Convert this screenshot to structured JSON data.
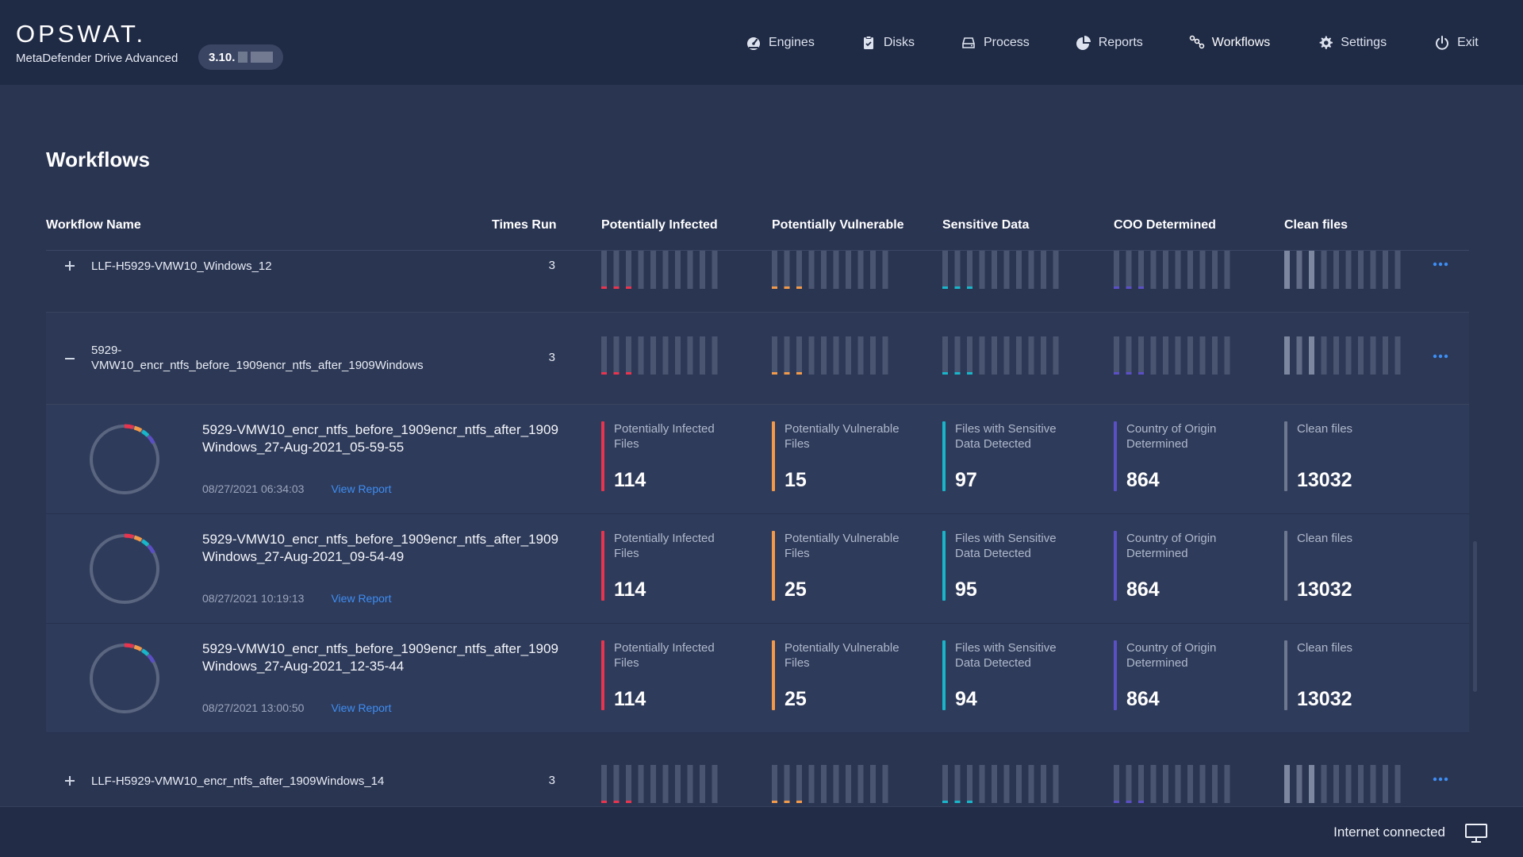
{
  "header": {
    "logo": "OPSWAT.",
    "product": "MetaDefender Drive Advanced",
    "version": "3.10.",
    "nav": [
      {
        "label": "Engines",
        "icon": "gauge-icon"
      },
      {
        "label": "Disks",
        "icon": "clipboard-check-icon"
      },
      {
        "label": "Process",
        "icon": "drive-icon"
      },
      {
        "label": "Reports",
        "icon": "pie-chart-icon"
      },
      {
        "label": "Workflows",
        "icon": "workflow-icon",
        "active": true
      },
      {
        "label": "Settings",
        "icon": "gear-icon"
      },
      {
        "label": "Exit",
        "icon": "power-icon"
      }
    ]
  },
  "page": {
    "title": "Workflows"
  },
  "table": {
    "columns": [
      "Workflow Name",
      "Times Run",
      "Potentially Infected",
      "Potentially Vulnerable",
      "Sensitive Data",
      "COO Determined",
      "Clean files"
    ],
    "rows": [
      {
        "name": "LLF-H5929-VMW10_Windows_12",
        "times": "3",
        "expanded": false
      },
      {
        "name": "5929-VMW10_encr_ntfs_before_1909encr_ntfs_after_1909Windows",
        "name_line1": "5929-",
        "name_line2": "VMW10_encr_ntfs_before_1909encr_ntfs_after_1909Windows",
        "times": "3",
        "expanded": true,
        "runs": [
          {
            "title": "5929-VMW10_encr_ntfs_before_1909encr_ntfs_after_1909Windows_27-Aug-2021_05-59-55",
            "date": "08/27/2021 06:34:03",
            "link": "View Report",
            "stats": {
              "infected": "114",
              "vulnerable": "15",
              "sensitive": "97",
              "coo": "864",
              "clean": "13032"
            }
          },
          {
            "title": "5929-VMW10_encr_ntfs_before_1909encr_ntfs_after_1909Windows_27-Aug-2021_09-54-49",
            "date": "08/27/2021 10:19:13",
            "link": "View Report",
            "stats": {
              "infected": "114",
              "vulnerable": "25",
              "sensitive": "95",
              "coo": "864",
              "clean": "13032"
            }
          },
          {
            "title": "5929-VMW10_encr_ntfs_before_1909encr_ntfs_after_1909Windows_27-Aug-2021_12-35-44",
            "date": "08/27/2021 13:00:50",
            "link": "View Report",
            "stats": {
              "infected": "114",
              "vulnerable": "25",
              "sensitive": "94",
              "coo": "864",
              "clean": "13032"
            }
          }
        ]
      },
      {
        "name": "LLF-H5929-VMW10_encr_ntfs_after_1909Windows_14",
        "times": "3",
        "expanded": false
      }
    ],
    "stat_labels": {
      "infected": "Potentially Infected Files",
      "vulnerable": "Potentially Vulnerable Files",
      "sensitive": "Files with Sensitive Data Detected",
      "coo": "Country of Origin Determined",
      "clean": "Clean files"
    }
  },
  "colors": {
    "infected": "#e8344e",
    "vulnerable": "#f39a4a",
    "sensitive": "#19b5c9",
    "coo": "#5b4fc4",
    "clean": "#6e7891",
    "link": "#3d8ef5"
  },
  "footer": {
    "status": "Internet connected",
    "icon": "monitor-icon"
  }
}
